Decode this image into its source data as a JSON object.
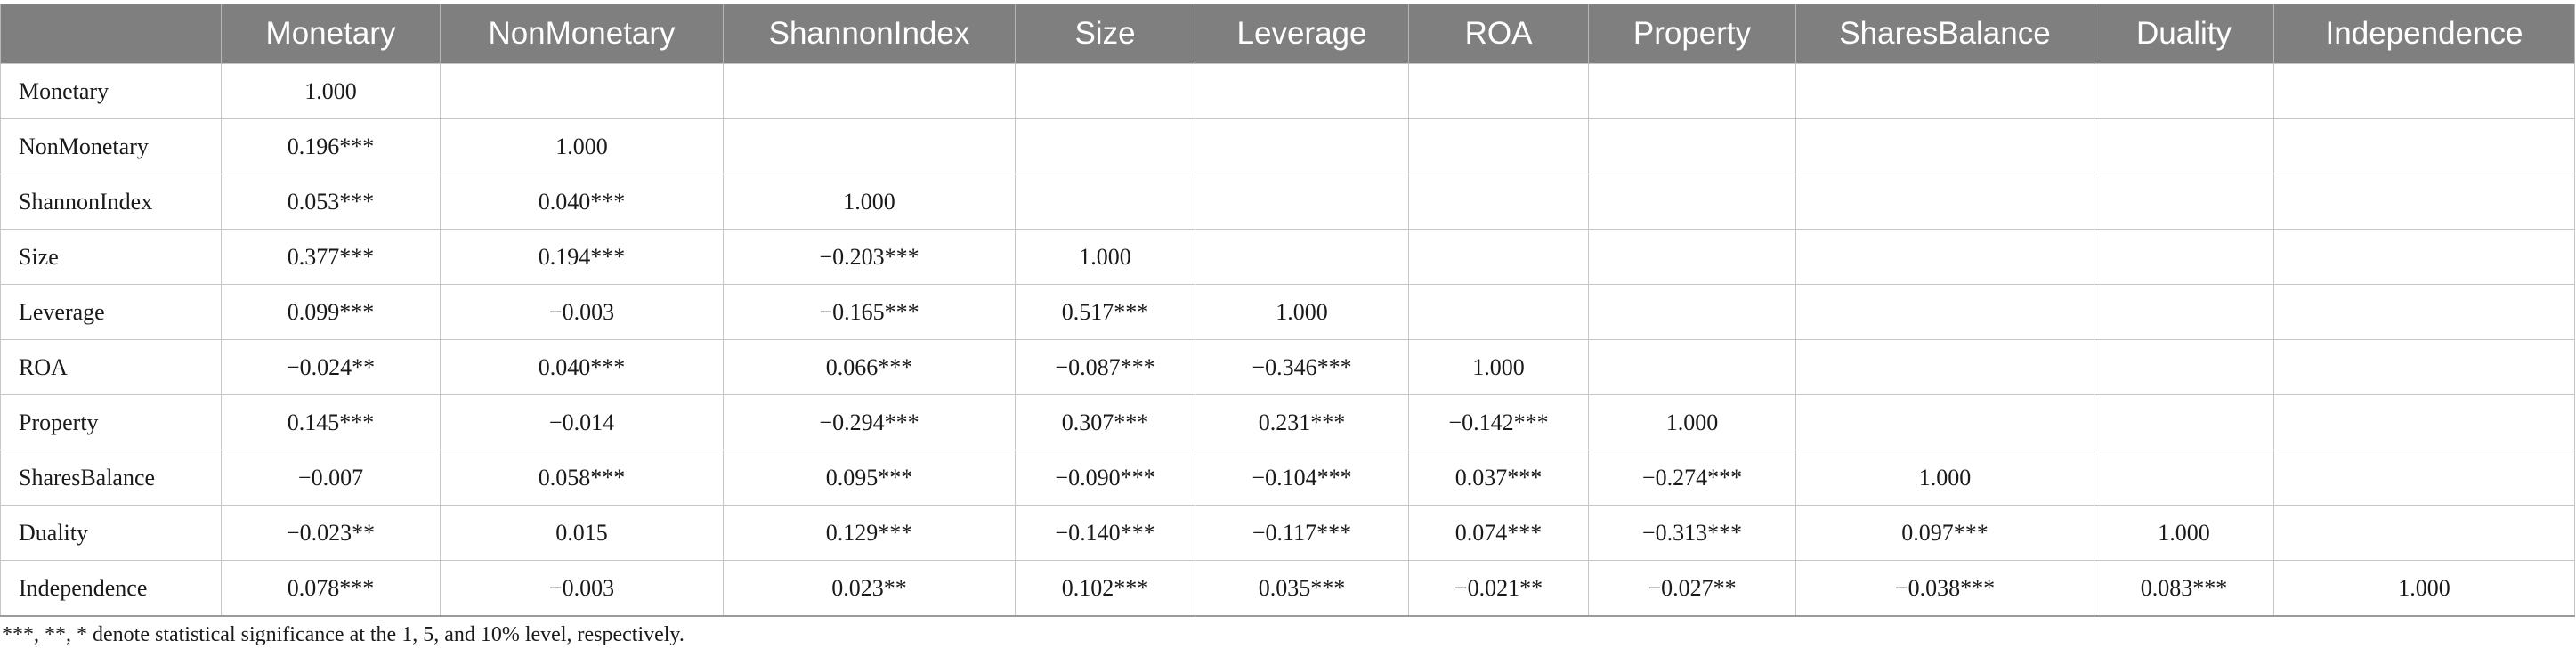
{
  "table": {
    "corner": "",
    "columns": [
      "Monetary",
      "NonMonetary",
      "ShannonIndex",
      "Size",
      "Leverage",
      "ROA",
      "Property",
      "SharesBalance",
      "Duality",
      "Independence"
    ],
    "rows": [
      {
        "label": "Monetary",
        "values": [
          "1.000",
          "",
          "",
          "",
          "",
          "",
          "",
          "",
          "",
          ""
        ]
      },
      {
        "label": "NonMonetary",
        "values": [
          "0.196***",
          "1.000",
          "",
          "",
          "",
          "",
          "",
          "",
          "",
          ""
        ]
      },
      {
        "label": "ShannonIndex",
        "values": [
          "0.053***",
          "0.040***",
          "1.000",
          "",
          "",
          "",
          "",
          "",
          "",
          ""
        ]
      },
      {
        "label": "Size",
        "values": [
          "0.377***",
          "0.194***",
          "−0.203***",
          "1.000",
          "",
          "",
          "",
          "",
          "",
          ""
        ]
      },
      {
        "label": "Leverage",
        "values": [
          "0.099***",
          "−0.003",
          "−0.165***",
          "0.517***",
          "1.000",
          "",
          "",
          "",
          "",
          ""
        ]
      },
      {
        "label": "ROA",
        "values": [
          "−0.024**",
          "0.040***",
          "0.066***",
          "−0.087***",
          "−0.346***",
          "1.000",
          "",
          "",
          "",
          ""
        ]
      },
      {
        "label": "Property",
        "values": [
          "0.145***",
          "−0.014",
          "−0.294***",
          "0.307***",
          "0.231***",
          "−0.142***",
          "1.000",
          "",
          "",
          ""
        ]
      },
      {
        "label": "SharesBalance",
        "values": [
          "−0.007",
          "0.058***",
          "0.095***",
          "−0.090***",
          "−0.104***",
          "0.037***",
          "−0.274***",
          "1.000",
          "",
          ""
        ]
      },
      {
        "label": "Duality",
        "values": [
          "−0.023**",
          "0.015",
          "0.129***",
          "−0.140***",
          "−0.117***",
          "0.074***",
          "−0.313***",
          "0.097***",
          "1.000",
          ""
        ]
      },
      {
        "label": "Independence",
        "values": [
          "0.078***",
          "−0.003",
          "0.023**",
          "0.102***",
          "0.035***",
          "−0.021**",
          "−0.027**",
          "−0.038***",
          "0.083***",
          "1.000"
        ]
      }
    ]
  },
  "footnote": "***, **, * denote statistical significance at the 1, 5, and 10% level, respectively.",
  "colors": {
    "header_bg": "#7f7f7f",
    "header_text": "#ffffff",
    "grid": "#c6c6c6"
  }
}
